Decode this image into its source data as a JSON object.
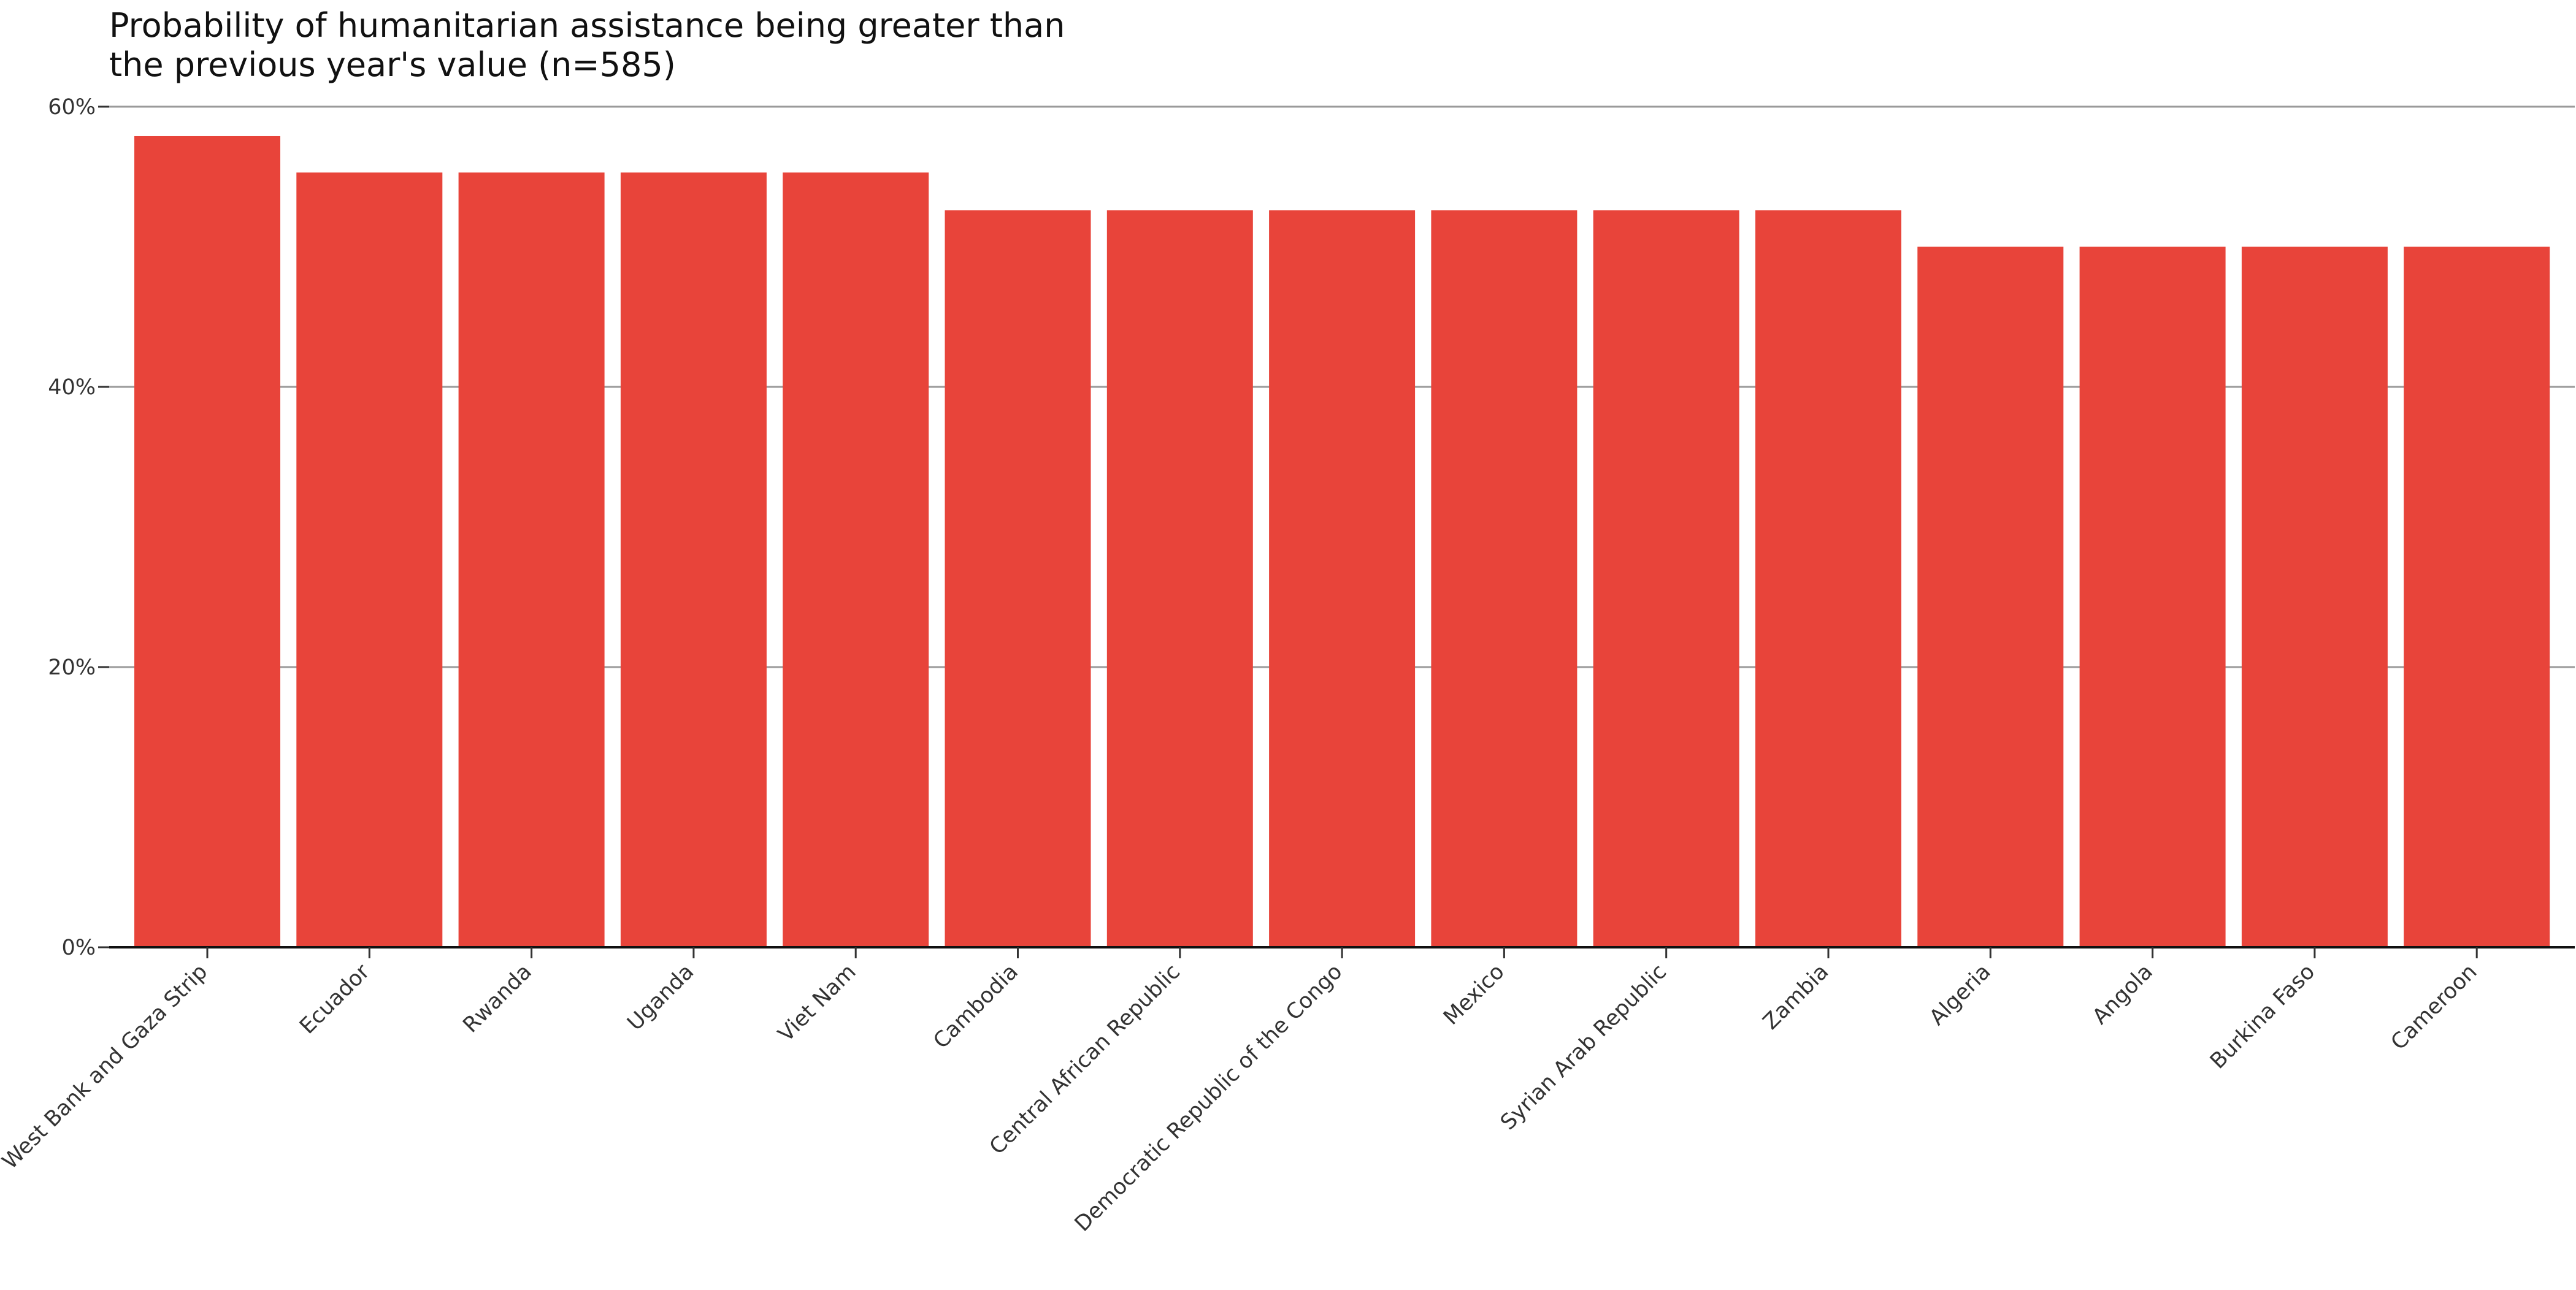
{
  "chart_data": {
    "type": "bar",
    "title_lines": [
      "Probability of humanitarian assistance being greater than",
      "the previous year's value (n=585)"
    ],
    "xlabel": "",
    "ylabel": "",
    "ylim": [
      0,
      60
    ],
    "yticks": [
      0,
      20,
      40,
      60
    ],
    "ytick_labels": [
      "0%",
      "20%",
      "40%",
      "60%"
    ],
    "grid": true,
    "legend": "none",
    "bar_color": "#e8443a",
    "categories": [
      "West Bank and Gaza Strip",
      "Ecuador",
      "Rwanda",
      "Uganda",
      "Viet Nam",
      "Cambodia",
      "Central African Republic",
      "Democratic Republic of the Congo",
      "Mexico",
      "Syrian Arab Republic",
      "Zambia",
      "Algeria",
      "Angola",
      "Burkina Faso",
      "Cameroon"
    ],
    "values": [
      57.9,
      55.3,
      55.3,
      55.3,
      55.3,
      52.6,
      52.6,
      52.6,
      52.6,
      52.6,
      52.6,
      50.0,
      50.0,
      50.0,
      50.0
    ]
  }
}
